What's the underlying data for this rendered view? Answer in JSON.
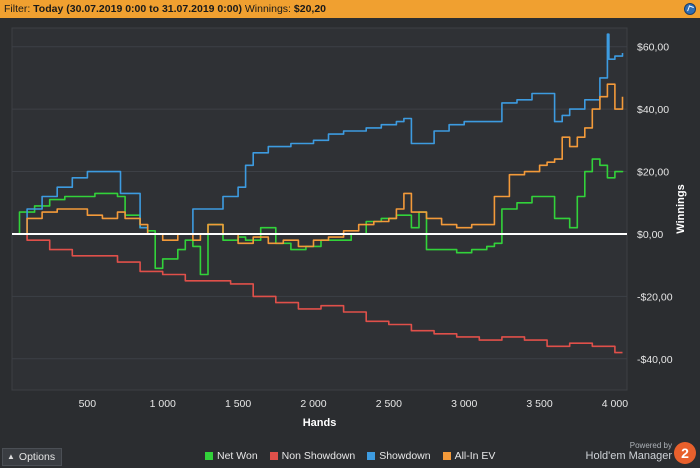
{
  "filter": {
    "label": "Filter:",
    "date_range": "Today (30.07.2019 0:00 to 31.07.2019 0:00)",
    "winnings_label": "Winnings:",
    "winnings_value": "$20,20"
  },
  "footer": {
    "options_label": "Options",
    "powered_by": "Powered by",
    "brand": "Hold'em Manager",
    "brand_badge": "2"
  },
  "colors": {
    "net_won": "#32d23a",
    "non_showdown": "#e0504a",
    "showdown": "#3d9be0",
    "all_in_ev": "#f39a3a",
    "zero_line": "#ffffff",
    "plot_bg": "#2f3135"
  },
  "chart_data": {
    "type": "line",
    "xlabel": "Hands",
    "ylabel": "Winnings",
    "xlim": [
      0,
      4080
    ],
    "ylim": [
      -50,
      66
    ],
    "xticks": [
      500,
      1000,
      1500,
      2000,
      2500,
      3000,
      3500,
      4000
    ],
    "xtick_labels": [
      "500",
      "1 000",
      "1 500",
      "2 000",
      "2 500",
      "3 000",
      "3 500",
      "4 000"
    ],
    "yticks": [
      -40,
      -20,
      0,
      20,
      40,
      60
    ],
    "ytick_labels": [
      "-$40,00",
      "-$20,00",
      "$0,00",
      "$20,00",
      "$40,00",
      "$60,00"
    ],
    "legend_position": "bottom",
    "series": [
      {
        "name": "Net Won",
        "color_key": "net_won",
        "x": [
          0,
          50,
          150,
          250,
          350,
          450,
          550,
          650,
          700,
          750,
          850,
          900,
          950,
          1000,
          1100,
          1150,
          1200,
          1250,
          1300,
          1400,
          1500,
          1550,
          1650,
          1750,
          1850,
          1950,
          2050,
          2150,
          2250,
          2350,
          2450,
          2550,
          2650,
          2700,
          2750,
          2850,
          2950,
          3050,
          3150,
          3200,
          3250,
          3350,
          3450,
          3550,
          3600,
          3700,
          3750,
          3800,
          3850,
          3900,
          3950,
          4000,
          4050
        ],
        "y": [
          0,
          7,
          9,
          11,
          12,
          12,
          13,
          13,
          12,
          6,
          2,
          1,
          -11,
          -8,
          -5,
          -2,
          -4,
          -13,
          3,
          -2,
          -1,
          -2,
          2,
          -3,
          -5,
          -4,
          -2,
          -2,
          0,
          4,
          5,
          6,
          2,
          7,
          -5,
          -5,
          -6,
          -5,
          -4,
          -3,
          8,
          10,
          12,
          12,
          5,
          2,
          12,
          20,
          24,
          22,
          18,
          20,
          20.2
        ]
      },
      {
        "name": "Non Showdown",
        "color_key": "non_showdown",
        "x": [
          0,
          100,
          250,
          400,
          550,
          700,
          850,
          1000,
          1150,
          1300,
          1450,
          1600,
          1750,
          1900,
          2050,
          2200,
          2350,
          2500,
          2650,
          2800,
          2950,
          3100,
          3250,
          3400,
          3550,
          3700,
          3850,
          4000,
          4050
        ],
        "y": [
          0,
          -2,
          -5,
          -7,
          -7,
          -9,
          -12,
          -13,
          -15,
          -15,
          -16,
          -20,
          -22,
          -24,
          -23,
          -25,
          -28,
          -29,
          -31,
          -32,
          -33,
          -34,
          -33,
          -34,
          -36,
          -35,
          -36,
          -38,
          -38
        ]
      },
      {
        "name": "Showdown",
        "color_key": "showdown",
        "x": [
          0,
          100,
          200,
          300,
          400,
          500,
          600,
          700,
          720,
          850,
          900,
          1000,
          1200,
          1400,
          1500,
          1550,
          1600,
          1700,
          1850,
          2000,
          2100,
          2200,
          2350,
          2450,
          2550,
          2600,
          2650,
          2700,
          2800,
          2900,
          3000,
          3150,
          3250,
          3350,
          3450,
          3550,
          3600,
          3650,
          3700,
          3800,
          3900,
          3950,
          3960,
          4000,
          4050
        ],
        "y": [
          0,
          8,
          12,
          15,
          18,
          20,
          20,
          20,
          13,
          2,
          0,
          0,
          8,
          12,
          15,
          22,
          26,
          28,
          29,
          30,
          32,
          33,
          34,
          35,
          36,
          37,
          29,
          29,
          33,
          35,
          36,
          36,
          42,
          43,
          45,
          45,
          36,
          38,
          40,
          43,
          50,
          64,
          56,
          57,
          58
        ]
      },
      {
        "name": "All-In EV",
        "color_key": "all_in_ev",
        "x": [
          0,
          100,
          200,
          300,
          400,
          500,
          600,
          700,
          750,
          850,
          900,
          1000,
          1100,
          1200,
          1250,
          1300,
          1400,
          1500,
          1600,
          1700,
          1800,
          1900,
          2000,
          2100,
          2200,
          2300,
          2400,
          2500,
          2550,
          2600,
          2650,
          2750,
          2850,
          2950,
          3050,
          3150,
          3200,
          3300,
          3400,
          3500,
          3550,
          3600,
          3650,
          3700,
          3750,
          3800,
          3850,
          3900,
          3950,
          4000,
          4050
        ],
        "y": [
          0,
          5,
          7,
          8,
          8,
          6,
          5,
          7,
          5,
          3,
          0,
          -2,
          0,
          -2,
          0,
          3,
          0,
          -3,
          -1,
          -3,
          -2,
          -4,
          -2,
          -1,
          1,
          3,
          4,
          5,
          8,
          13,
          7,
          5,
          3,
          2,
          3,
          3,
          12,
          19,
          20,
          22,
          23,
          24,
          31,
          28,
          31,
          34,
          40,
          44,
          48,
          40,
          44
        ]
      }
    ]
  }
}
